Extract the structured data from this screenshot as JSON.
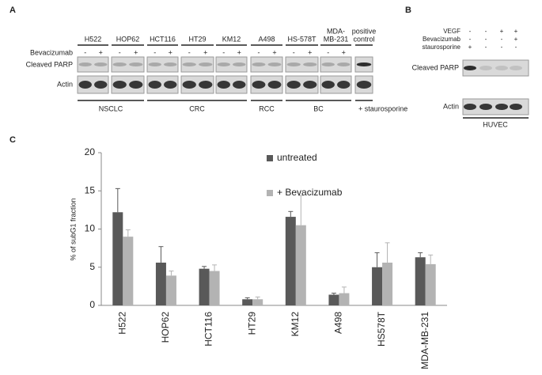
{
  "panel_a": {
    "label": "A",
    "treatment_label": "Bevacizumab",
    "rows": [
      "Cleaved PARP",
      "Actin"
    ],
    "lanes": [
      {
        "name": [
          "H522"
        ],
        "signs": [
          "-",
          "+"
        ]
      },
      {
        "name": [
          "HOP62"
        ],
        "signs": [
          "-",
          "+"
        ]
      },
      {
        "name": [
          "HCT116"
        ],
        "signs": [
          "-",
          "+"
        ]
      },
      {
        "name": [
          "HT29"
        ],
        "signs": [
          "-",
          "+"
        ]
      },
      {
        "name": [
          "KM12"
        ],
        "signs": [
          "-",
          "+"
        ]
      },
      {
        "name": [
          "A498"
        ],
        "signs": [
          "-",
          "+"
        ]
      },
      {
        "name": [
          "HS-578T"
        ],
        "signs": [
          "-",
          "+"
        ]
      },
      {
        "name": [
          "MDA-",
          "MB-231"
        ],
        "signs": [
          "-",
          "+"
        ]
      },
      {
        "name": [
          "positive",
          "control"
        ],
        "signs": []
      }
    ],
    "groups": [
      "NSCLC",
      "CRC",
      "RCC",
      "BC",
      "+ staurosporine"
    ]
  },
  "panel_b": {
    "label": "B",
    "conditions": [
      {
        "name": "VEGF",
        "signs": [
          "-",
          "-",
          "+",
          "+"
        ]
      },
      {
        "name": "Bevacizumab",
        "signs": [
          "-",
          "-",
          "-",
          "+"
        ]
      },
      {
        "name": "staurosporine",
        "signs": [
          "+",
          "-",
          "-",
          "-"
        ]
      }
    ],
    "rows": [
      "Cleaved PARP",
      "Actin"
    ],
    "cell_line": "HUVEC"
  },
  "chart_data": {
    "type": "bar",
    "panel_label": "C",
    "y_label": "% of subG1 fraction",
    "categories": [
      "H522",
      "HOP62",
      "HCT116",
      "HT29",
      "KM12",
      "A498",
      "HS578T",
      "MDA-MB-231"
    ],
    "series": [
      {
        "name": "untreated",
        "color": "#595959",
        "values": [
          12.2,
          5.6,
          4.8,
          0.8,
          11.6,
          1.4,
          5.0,
          6.3
        ],
        "errors": [
          3.1,
          2.1,
          0.3,
          0.2,
          0.7,
          0.2,
          1.9,
          0.6
        ]
      },
      {
        "name": "+ Bevacizumab",
        "color": "#b3b3b3",
        "values": [
          9.0,
          3.9,
          4.5,
          0.8,
          10.5,
          1.6,
          5.6,
          5.4
        ],
        "errors": [
          0.9,
          0.6,
          0.8,
          0.3,
          3.9,
          0.8,
          2.6,
          1.2
        ]
      }
    ],
    "ylim": [
      0,
      20
    ],
    "yticks": [
      0,
      5,
      10,
      15,
      20
    ],
    "grid": false
  }
}
